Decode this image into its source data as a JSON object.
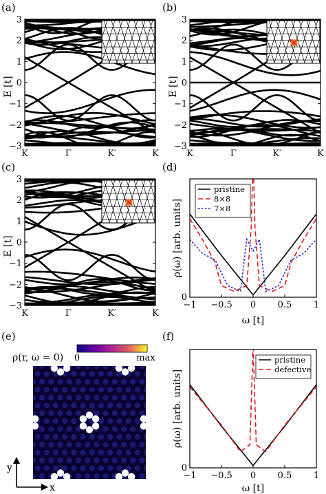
{
  "panels": {
    "a": {
      "label": "(a)"
    },
    "b": {
      "label": "(b)"
    },
    "c": {
      "label": "(c)"
    },
    "d": {
      "label": "(d)"
    },
    "e": {
      "label": "(e)"
    },
    "f": {
      "label": "(f)"
    }
  },
  "colors": {
    "band_line": "#000000",
    "pristine": "#000000",
    "defect_8x8": "#e31a1c",
    "defect_7x8": "#1f1fd6",
    "defect_marker": "#ff7f0e",
    "map_bg": "#0b0030",
    "map_sites": "#1b1f7a",
    "map_peaks": "#ffffff"
  },
  "band_axes": {
    "ylabel": "E [t]",
    "yticks": [
      "3",
      "2",
      "1",
      "0",
      "−1",
      "−2",
      "−3"
    ],
    "xticks": [
      "K",
      "Γ",
      "K′",
      "K"
    ],
    "ylim": [
      -3,
      3
    ]
  },
  "dos_axes": {
    "ylabel": "ρ(ω) [arb. units]",
    "xlabel": "ω [t]",
    "xticks": [
      "−1",
      "−0.5",
      "0",
      "0.5",
      "1"
    ],
    "ytick": "0",
    "xlim": [
      -1,
      1
    ]
  },
  "colorbar": {
    "label": "ρ(r, ω = 0)",
    "min_label": "0",
    "max_label": "max"
  },
  "map_axes": {
    "y": "y",
    "x": "x"
  },
  "chart_data": [
    {
      "id": "a",
      "type": "line",
      "xlabel": "",
      "ylabel": "E [t]",
      "ylim": [
        -3,
        3
      ],
      "categories": [
        "K",
        "Γ",
        "K′",
        "K"
      ],
      "bands": [
        {
          "name": "",
          "x": [
            0,
            0.5,
            1,
            1.5,
            2,
            2.5,
            3
          ],
          "y": [
            2.9,
            2.6,
            1.8,
            0.9,
            1.8,
            2.8,
            2.9
          ]
        },
        {
          "name": "",
          "x": [
            0,
            0.5,
            1,
            1.5,
            2,
            2.5,
            3
          ],
          "y": [
            1.2,
            0.6,
            0,
            0.6,
            1.2,
            1.5,
            1.2
          ]
        },
        {
          "name": "",
          "x": [
            0,
            0.5,
            1,
            1.5,
            2,
            2.5,
            3
          ],
          "y": [
            -1.2,
            -0.6,
            0,
            -0.6,
            -1.2,
            -1.5,
            -1.2
          ]
        }
      ]
    },
    {
      "id": "b",
      "type": "line",
      "xlabel": "",
      "ylabel": "E [t]",
      "ylim": [
        -3,
        3
      ],
      "categories": [
        "K",
        "Γ",
        "K′",
        "K"
      ],
      "bands": [
        {
          "name": "",
          "x": [
            0,
            3
          ],
          "y": [
            0,
            0
          ]
        }
      ]
    },
    {
      "id": "c",
      "type": "line",
      "xlabel": "",
      "ylabel": "E [t]",
      "ylim": [
        -3,
        3
      ],
      "categories": [
        "K",
        "Γ",
        "K′",
        "K"
      ],
      "bands": [
        {
          "name": "",
          "x": [
            0,
            0.5,
            1,
            1.5,
            2,
            2.5,
            3
          ],
          "y": [
            0.5,
            0.3,
            0.4,
            0.2,
            0.0,
            0.1,
            0.0
          ]
        }
      ]
    },
    {
      "id": "d",
      "type": "line",
      "xlabel": "ω [t]",
      "ylabel": "ρ(ω) [arb. units]",
      "xlim": [
        -1,
        1
      ],
      "legend": "top-left",
      "series": [
        {
          "name": "pristine",
          "x": [
            -1,
            -0.5,
            0,
            0.5,
            1
          ],
          "y": [
            0.72,
            0.36,
            0.02,
            0.36,
            0.72
          ]
        },
        {
          "name": "8×8",
          "x": [
            -1,
            -0.8,
            -0.6,
            -0.5,
            -0.3,
            -0.1,
            -0.03,
            0,
            0.03,
            0.1,
            0.3,
            0.5,
            0.6,
            0.8,
            1
          ],
          "y": [
            0.68,
            0.5,
            0.3,
            0.1,
            0.05,
            0.1,
            0.6,
            1.2,
            0.6,
            0.1,
            0.05,
            0.1,
            0.3,
            0.5,
            0.68
          ]
        },
        {
          "name": "7×8",
          "x": [
            -1,
            -0.8,
            -0.6,
            -0.4,
            -0.2,
            -0.1,
            0,
            0.1,
            0.2,
            0.4,
            0.6,
            0.8,
            1
          ],
          "y": [
            0.5,
            0.38,
            0.32,
            0.1,
            0.05,
            0.5,
            0.4,
            0.5,
            0.05,
            0.1,
            0.32,
            0.38,
            0.5
          ]
        }
      ]
    },
    {
      "id": "f",
      "type": "line",
      "xlabel": "ω [t]",
      "ylabel": "ρ(ω) [arb. units]",
      "xlim": [
        -1,
        1
      ],
      "legend": "top-right",
      "series": [
        {
          "name": "pristine",
          "x": [
            -1,
            -0.5,
            0,
            0.5,
            1
          ],
          "y": [
            0.72,
            0.36,
            0.02,
            0.36,
            0.72
          ]
        },
        {
          "name": "defective",
          "x": [
            -1,
            -0.5,
            -0.2,
            -0.05,
            -0.01,
            0,
            0.01,
            0.05,
            0.2,
            0.5,
            1
          ],
          "y": [
            0.7,
            0.37,
            0.14,
            0.2,
            0.9,
            1.2,
            0.9,
            0.2,
            0.14,
            0.37,
            0.7
          ]
        }
      ]
    }
  ]
}
